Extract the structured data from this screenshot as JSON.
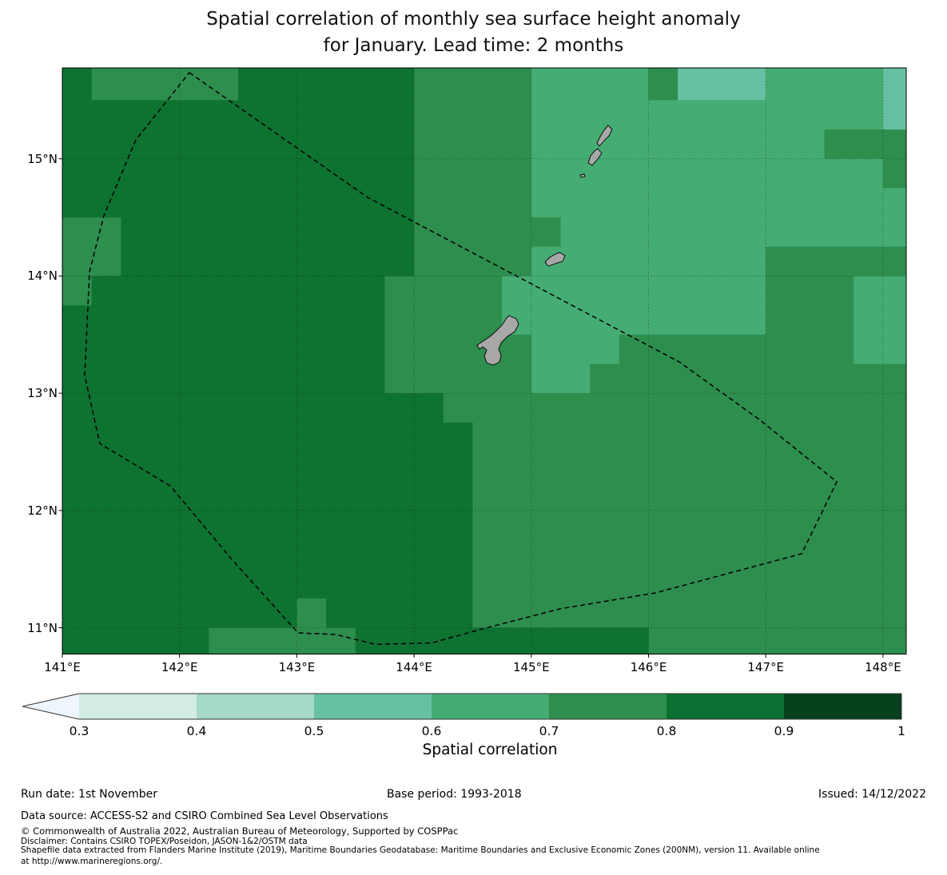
{
  "title": {
    "line1": "Spatial correlation of monthly sea surface height anomaly",
    "line2": "for January. Lead time: 2 months"
  },
  "chart_data": {
    "type": "heatmap",
    "subtype": "gridded-geographic-correlation-map",
    "title": "Spatial correlation of monthly sea surface height anomaly for January. Lead time: 2 months",
    "colorbar": {
      "label": "Spatial correlation",
      "ticks": [
        "0.3",
        "0.4",
        "0.5",
        "0.6",
        "0.7",
        "0.8",
        "0.9",
        "1"
      ],
      "segment_colors": [
        "#d3ece4",
        "#a6d9c6",
        "#66c0a2",
        "#45ac73",
        "#2e8e4e",
        "#0b7031",
        "#06401d"
      ],
      "under_arrow_color": "#eef5fb",
      "outline_color": "#333333"
    },
    "axes": {
      "x_ticks": [
        "141°E",
        "142°E",
        "143°E",
        "144°E",
        "145°E",
        "146°E",
        "147°E",
        "148°E"
      ],
      "x_tick_lons": [
        141,
        142,
        143,
        144,
        145,
        146,
        147,
        148
      ],
      "y_ticks": [
        "15°N",
        "14°N",
        "13°N",
        "12°N",
        "11°N"
      ],
      "y_tick_lats": [
        15,
        14,
        13,
        12,
        11
      ],
      "lon_range": [
        141.0,
        148.2
      ],
      "lat_range": [
        10.77,
        15.78
      ],
      "grid": "on",
      "gridline_lons": [
        142,
        143,
        144,
        145,
        146,
        147,
        148
      ],
      "gridline_lats": [
        15,
        14,
        13,
        12,
        11
      ]
    },
    "grid_cells": {
      "comment": "correlation bin per 0.25deg cell; rows from lat 15.75N (top) to 10.75N, cols from lon 141E to 148.25E; digit d means correlation in [d/10,(d+1)/10]",
      "bin_key": {
        "5": "0.5-0.6",
        "6": "0.6-0.7",
        "7": "0.7-0.8",
        "8": "0.8-0.9"
      },
      "bin_colors": {
        "3": "#d3ece4",
        "4": "#a6d9c6",
        "5": "#66c0a2",
        "6": "#45ac73",
        "7": "#2e8e4e",
        "8": "#0e7231",
        "9": "#06401d"
      },
      "lon_origin": 141.0,
      "lat_origin": 15.75,
      "cell_deg": 0.25,
      "rows": [
        "87777788888877776666755566665",
        "88888888888877776666666666665",
        "88888888888877776666666666777",
        "88888888888877776666666666667",
        "88888888888877776666666666666",
        "77888888888877777666666666666",
        "77888888888877776666666677777",
        "78888888888777766666666677766",
        "88888888888777766666666677766",
        "88888888888777776667777777766",
        "88888888888777776677777777777",
        "88888888888887777777777777777",
        "88888888888888777777777777777",
        "88888888888888777777777777777",
        "88888888888888777777777777777",
        "88888888888888777777777777777",
        "88888888888888777777777777777",
        "88888888888888777777777777777",
        "88888888788888777777777777777",
        "88888777778888888888777777777"
      ]
    },
    "eez_boundary": {
      "style": "dashed",
      "color": "#000000",
      "points_lonlat": [
        [
          142.084,
          15.735
        ],
        [
          143.604,
          14.671
        ],
        [
          146.263,
          13.267
        ],
        [
          146.945,
          12.776
        ],
        [
          147.606,
          12.244
        ],
        [
          147.306,
          11.631
        ],
        [
          146.058,
          11.297
        ],
        [
          145.24,
          11.16
        ],
        [
          144.558,
          10.983
        ],
        [
          144.149,
          10.87
        ],
        [
          143.672,
          10.858
        ],
        [
          143.331,
          10.942
        ],
        [
          143.011,
          10.956
        ],
        [
          142.445,
          11.583
        ],
        [
          141.92,
          12.21
        ],
        [
          141.32,
          12.571
        ],
        [
          141.191,
          13.151
        ],
        [
          141.232,
          14.037
        ],
        [
          141.354,
          14.514
        ],
        [
          141.627,
          15.162
        ]
      ]
    },
    "islands": {
      "fill_color": "#a8a8a8",
      "outline_color": "#000000",
      "features": [
        {
          "name": "saipan",
          "outline": [
            [
              145.656,
              15.285
            ],
            [
              145.69,
              15.251
            ],
            [
              145.663,
              15.196
            ],
            [
              145.622,
              15.155
            ],
            [
              145.581,
              15.108
            ],
            [
              145.56,
              15.135
            ],
            [
              145.588,
              15.19
            ],
            [
              145.622,
              15.244
            ]
          ]
        },
        {
          "name": "tinian",
          "outline": [
            [
              145.567,
              15.087
            ],
            [
              145.601,
              15.046
            ],
            [
              145.567,
              14.999
            ],
            [
              145.52,
              14.944
            ],
            [
              145.486,
              14.965
            ],
            [
              145.506,
              15.026
            ],
            [
              145.54,
              15.067
            ]
          ]
        },
        {
          "name": "aguijan",
          "outline": [
            [
              145.418,
              14.862
            ],
            [
              145.452,
              14.869
            ],
            [
              145.459,
              14.849
            ],
            [
              145.424,
              14.842
            ]
          ]
        },
        {
          "name": "rota",
          "outline": [
            [
              145.24,
              14.201
            ],
            [
              145.288,
              14.174
            ],
            [
              145.267,
              14.126
            ],
            [
              145.206,
              14.106
            ],
            [
              145.145,
              14.085
            ],
            [
              145.118,
              14.119
            ],
            [
              145.158,
              14.16
            ],
            [
              145.206,
              14.187
            ]
          ]
        },
        {
          "name": "guam",
          "outline": [
            [
              144.811,
              13.663
            ],
            [
              144.872,
              13.635
            ],
            [
              144.893,
              13.588
            ],
            [
              144.859,
              13.526
            ],
            [
              144.797,
              13.485
            ],
            [
              144.743,
              13.431
            ],
            [
              144.722,
              13.376
            ],
            [
              144.743,
              13.322
            ],
            [
              144.729,
              13.267
            ],
            [
              144.675,
              13.24
            ],
            [
              144.62,
              13.26
            ],
            [
              144.6,
              13.315
            ],
            [
              144.62,
              13.369
            ],
            [
              144.586,
              13.397
            ],
            [
              144.559,
              13.376
            ],
            [
              144.538,
              13.41
            ],
            [
              144.586,
              13.444
            ],
            [
              144.641,
              13.478
            ],
            [
              144.702,
              13.533
            ],
            [
              144.756,
              13.588
            ],
            [
              144.784,
              13.635
            ]
          ]
        }
      ]
    }
  },
  "footer": {
    "run_date": "Run date: 1st November",
    "base_period": "Base period: 1993-2018",
    "issued": "Issued: 14/12/2022",
    "data_source": "Data source: ACCESS-S2 and CSIRO Combined Sea Level Observations",
    "copyright": "© Commonwealth of Australia 2022, Australian Bureau of Meteorology, Supported by COSPPac",
    "disclaimer": "Disclaimer: Contains CSIRO TOPEX/Poseidon, JASON-1&2/OSTM data",
    "shapefile_line1": "Shapefile data extracted from Flanders Marine Institute (2019), Maritime Boundaries Geodatabase: Maritime Boundaries and Exclusive Economic Zones (200NM), version 11. Available online",
    "shapefile_line2": "at http://www.marineregions.org/."
  }
}
